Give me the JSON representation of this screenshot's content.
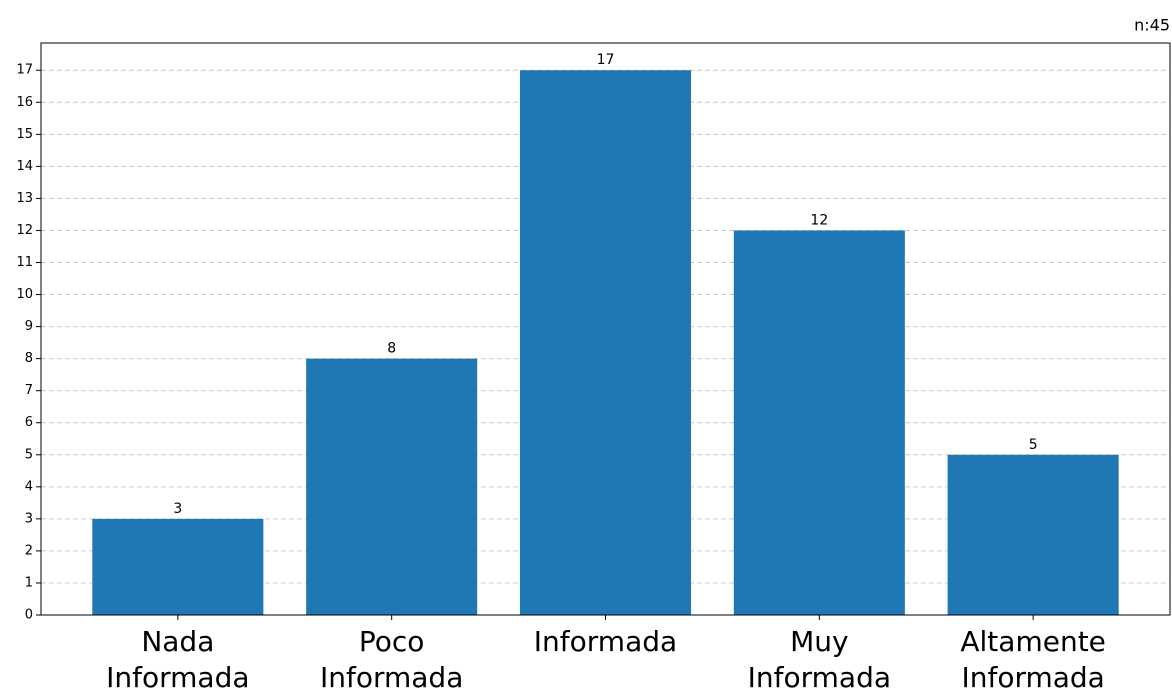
{
  "chart_data": {
    "type": "bar",
    "annotation": "n:45",
    "categories": [
      "Nada\nInformada",
      "Poco\nInformada",
      "Informada",
      "Muy\nInformada",
      "Altamente\nInformada"
    ],
    "values": [
      3,
      8,
      17,
      12,
      5
    ],
    "color": "#1f77b4",
    "ylim": [
      0,
      17.85
    ],
    "yticks": [
      0,
      1,
      2,
      3,
      4,
      5,
      6,
      7,
      8,
      9,
      10,
      11,
      12,
      13,
      14,
      15,
      16,
      17
    ],
    "grid": true
  }
}
